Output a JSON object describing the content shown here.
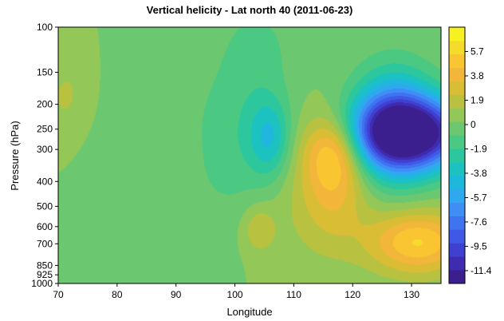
{
  "chart_data": {
    "type": "heatmap",
    "title": "Vertical helicity - Lat north 40 (2011-06-23)",
    "xlabel": "Longitude",
    "ylabel": "Pressure (hPa)",
    "xlim": [
      70,
      135
    ],
    "ylim": [
      1000,
      100
    ],
    "y_scale": "log",
    "x_ticks": [
      70,
      80,
      90,
      100,
      110,
      120,
      130
    ],
    "y_ticks": [
      100,
      150,
      200,
      250,
      300,
      400,
      500,
      600,
      700,
      850,
      925,
      1000
    ],
    "colorbar": {
      "range": [
        -12.4,
        7.6
      ],
      "tick_values": [
        5.7,
        3.8,
        1.9,
        0,
        -1.9,
        -3.8,
        -5.7,
        -7.6,
        -9.5,
        -11.4
      ],
      "tick_labels": [
        "5.7",
        "3.8",
        "1.9",
        "0",
        "-1.9",
        "-3.8",
        "-5.7",
        "-7.6",
        "-9.5",
        "-11.4"
      ],
      "colors": [
        "#3b1f8f",
        "#3f2bb0",
        "#4040d0",
        "#3f58e8",
        "#3f73f0",
        "#3f8ef5",
        "#30a8f0",
        "#1fb8dc",
        "#1cc2c0",
        "#2dc79e",
        "#4bc882",
        "#6cc870",
        "#93c758",
        "#b8c240",
        "#d9bd35",
        "#f2b63a",
        "#f9c631",
        "#f6dc2a",
        "#f6f120"
      ]
    },
    "features": [
      {
        "lon": 130,
        "p": 260,
        "value": -11.9
      },
      {
        "lon": 127,
        "p": 240,
        "value": -6.5
      },
      {
        "lon": 131,
        "p": 690,
        "value": 5.4
      },
      {
        "lon": 117,
        "p": 300,
        "value": 4.0
      },
      {
        "lon": 117,
        "p": 420,
        "value": 3.0
      },
      {
        "lon": 106,
        "p": 270,
        "value": -3.6
      },
      {
        "lon": 103,
        "p": 120,
        "value": -1.3
      },
      {
        "lon": 104,
        "p": 610,
        "value": 2.0
      },
      {
        "lon": 102,
        "p": 280,
        "value": -2.0
      },
      {
        "lon": 85,
        "p": 150,
        "value": -0.9
      },
      {
        "lon": 76,
        "p": 300,
        "value": -0.8
      },
      {
        "lon": 86,
        "p": 600,
        "value": -0.8
      },
      {
        "lon": 72,
        "p": 200,
        "value": 1.5
      },
      {
        "lon": 110,
        "p": 380,
        "value": 1.2
      },
      {
        "lon": 92,
        "p": 120,
        "value": 0.6
      }
    ]
  }
}
